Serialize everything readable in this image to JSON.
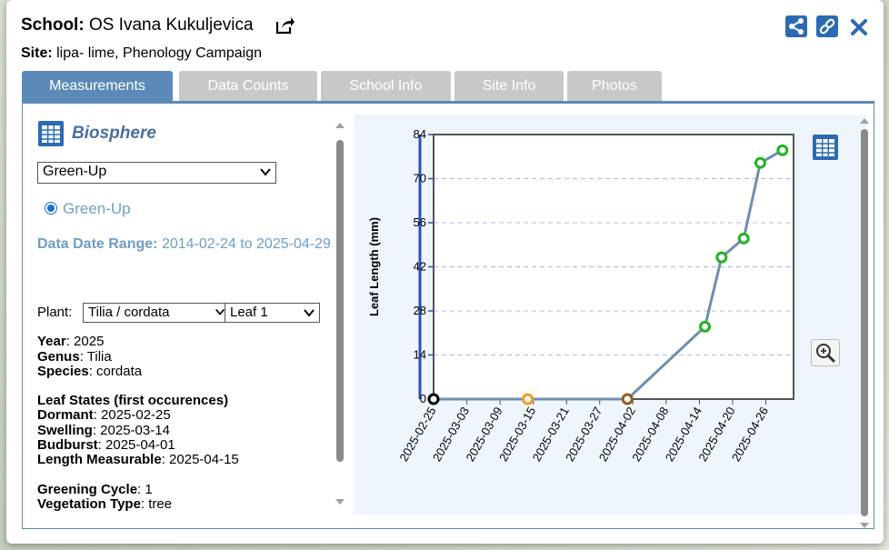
{
  "header": {
    "school_label": "School:",
    "school_name": "OS Ivana Kukuljevica",
    "site_label": "Site:",
    "site_name": "lipa- lime, Phenology Campaign"
  },
  "tabs": [
    "Measurements",
    "Data Counts",
    "School Info",
    "Site Info",
    "Photos"
  ],
  "left": {
    "title": "Biosphere",
    "protocol_select": "Green-Up",
    "radio_label": "Green-Up",
    "date_range_label": "Data Date Range:",
    "date_range_value": "2014-02-24 to 2025-04-29",
    "plant_label": "Plant:",
    "plant_select": "Tilia / cordata",
    "leaf_select": "Leaf 1",
    "year_label": "Year",
    "year_value": ": 2025",
    "genus_label": "Genus",
    "genus_value": ": Tilia",
    "species_label": "Species",
    "species_value": ": cordata",
    "leaf_states_heading": "Leaf States (first occurences)",
    "dormant_label": "Dormant",
    "dormant_value": ": 2025-02-25",
    "swelling_label": "Swelling",
    "swelling_value": ": 2025-03-14",
    "budburst_label": "Budburst",
    "budburst_value": ": 2025-04-01",
    "length_label": "Length Measurable",
    "length_value": ": 2025-04-15",
    "greening_label": "Greening Cycle",
    "greening_value": ": 1",
    "vegetation_label": "Vegetation Type",
    "vegetation_value": ": tree"
  },
  "icons": {
    "external": "external-link-icon",
    "share": "share-icon",
    "link": "link-icon",
    "close": "close-icon",
    "table": "table-icon",
    "zoom": "zoom-in-icon"
  },
  "colors": {
    "tab_active": "#5b8ab8",
    "tab_inactive": "#c8c8c8",
    "accent_blue": "#2c6bb3",
    "series_line": "#6f8fb0",
    "dormant": "#000000",
    "swelling": "#f29a1f",
    "budburst": "#9b5a1a",
    "length_measurable": "#1fb51f"
  },
  "chart_data": {
    "type": "line",
    "title": "",
    "xlabel": "",
    "ylabel": "Leaf Length (mm)",
    "ylim": [
      0,
      84
    ],
    "yticks": [
      0,
      14,
      28,
      42,
      56,
      70,
      84
    ],
    "xlim": [
      "2025-02-25",
      "2025-05-01"
    ],
    "xticks": [
      "2025-02-25",
      "2025-03-03",
      "2025-03-09",
      "2025-03-15",
      "2025-03-21",
      "2025-03-27",
      "2025-04-02",
      "2025-04-08",
      "2025-04-14",
      "2025-04-20",
      "2025-04-26"
    ],
    "grid": true,
    "points": [
      {
        "date": "2025-02-25",
        "value": 0,
        "state": "dormant"
      },
      {
        "date": "2025-03-14",
        "value": 0,
        "state": "swelling"
      },
      {
        "date": "2025-04-01",
        "value": 0,
        "state": "budburst"
      },
      {
        "date": "2025-04-15",
        "value": 23,
        "state": "length_measurable"
      },
      {
        "date": "2025-04-18",
        "value": 45,
        "state": "length_measurable"
      },
      {
        "date": "2025-04-22",
        "value": 51,
        "state": "length_measurable"
      },
      {
        "date": "2025-04-25",
        "value": 75,
        "state": "length_measurable"
      },
      {
        "date": "2025-04-29",
        "value": 79,
        "state": "length_measurable"
      }
    ]
  }
}
